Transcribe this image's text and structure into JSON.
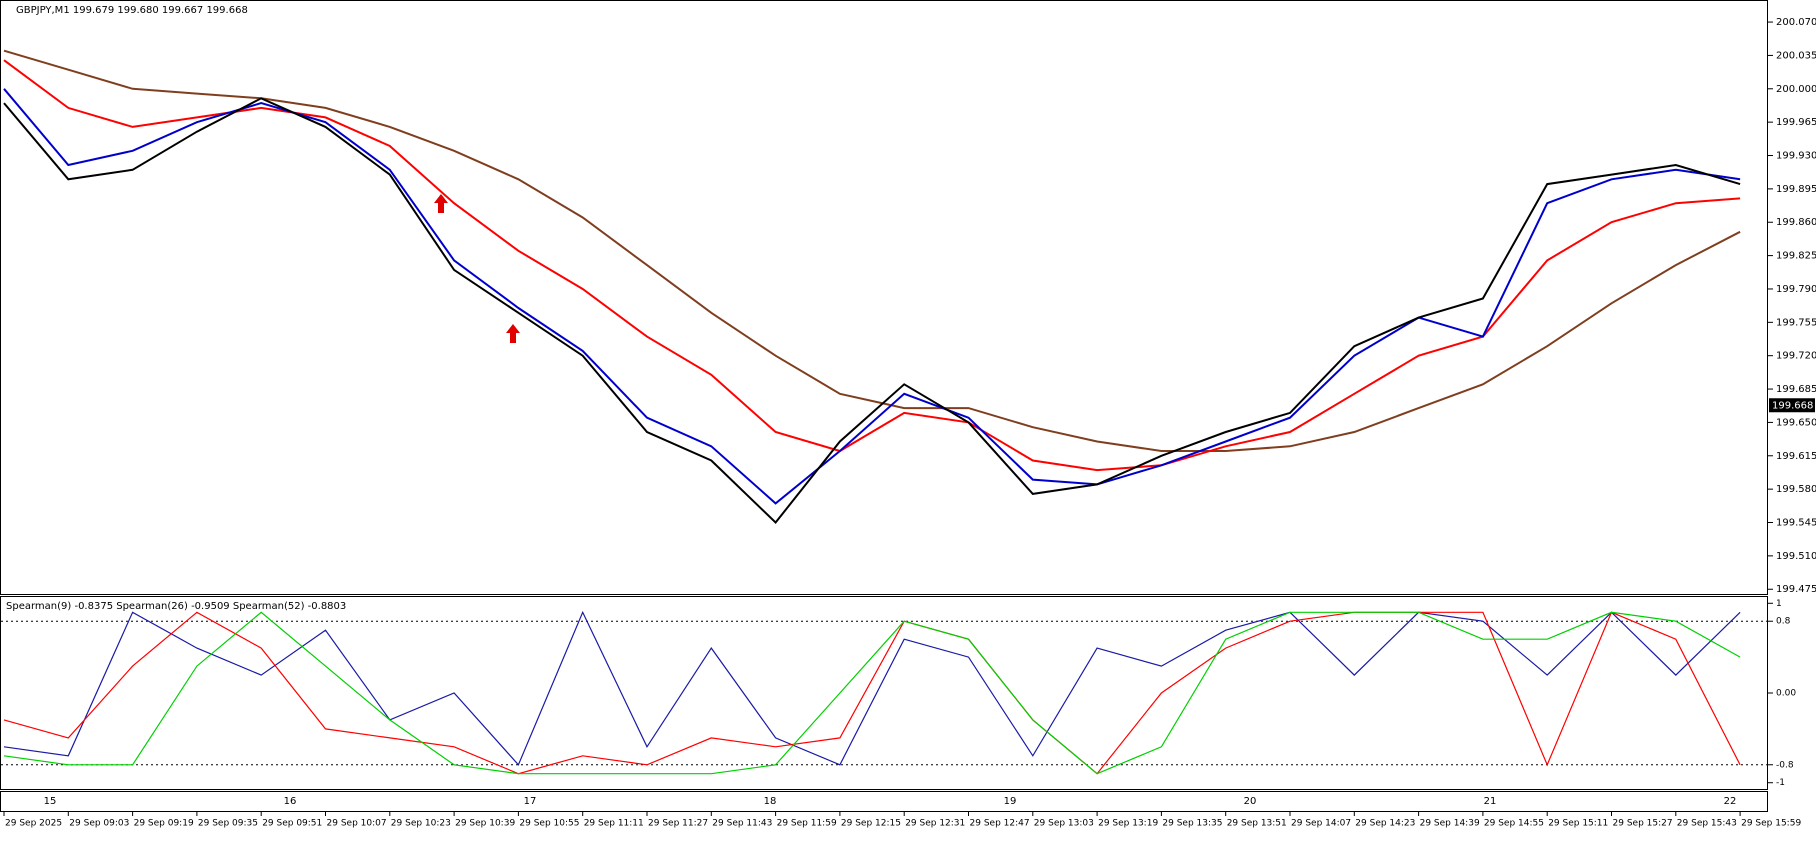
{
  "chart_data": [
    {
      "type": "line",
      "title": "GBPJPY,M1  199.679 199.680 199.667 199.668",
      "categories": [
        "29 Sep 2025",
        "29 Sep 09:03",
        "29 Sep 09:19",
        "29 Sep 09:35",
        "29 Sep 09:51",
        "29 Sep 10:07",
        "29 Sep 10:23",
        "29 Sep 10:39",
        "29 Sep 10:55",
        "29 Sep 11:11",
        "29 Sep 11:27",
        "29 Sep 11:43",
        "29 Sep 11:59",
        "29 Sep 12:15",
        "29 Sep 12:31",
        "29 Sep 12:47",
        "29 Sep 13:03",
        "29 Sep 13:19",
        "29 Sep 13:35",
        "29 Sep 13:51",
        "29 Sep 14:07",
        "29 Sep 14:23",
        "29 Sep 14:39",
        "29 Sep 14:55",
        "29 Sep 15:11",
        "29 Sep 15:27",
        "29 Sep 15:43",
        "29 Sep 15:59"
      ],
      "day_labels": [
        "15",
        "16",
        "17",
        "18",
        "19",
        "20",
        "21",
        "22"
      ],
      "series": [
        {
          "color": "#7f3f1f",
          "values": [
            200.04,
            200.02,
            200.0,
            199.995,
            199.99,
            199.98,
            199.96,
            199.935,
            199.905,
            199.865,
            199.815,
            199.765,
            199.72,
            199.68,
            199.665,
            199.665,
            199.645,
            199.63,
            199.62,
            199.62,
            199.625,
            199.64,
            199.665,
            199.69,
            199.73,
            199.775,
            199.815,
            199.85
          ]
        },
        {
          "color": "#ff0000",
          "values": [
            200.03,
            199.98,
            199.96,
            199.97,
            199.98,
            199.97,
            199.94,
            199.88,
            199.83,
            199.79,
            199.74,
            199.7,
            199.64,
            199.62,
            199.66,
            199.65,
            199.61,
            199.6,
            199.605,
            199.625,
            199.64,
            199.68,
            199.72,
            199.74,
            199.82,
            199.86,
            199.88,
            199.885
          ]
        },
        {
          "color": "#0000cc",
          "values": [
            200.0,
            199.92,
            199.935,
            199.965,
            199.985,
            199.965,
            199.915,
            199.82,
            199.77,
            199.725,
            199.655,
            199.625,
            199.565,
            199.62,
            199.68,
            199.655,
            199.59,
            199.585,
            199.605,
            199.63,
            199.655,
            199.72,
            199.76,
            199.74,
            199.88,
            199.905,
            199.915,
            199.905
          ]
        },
        {
          "color": "#000000",
          "values": [
            199.985,
            199.905,
            199.915,
            199.955,
            199.99,
            199.96,
            199.91,
            199.81,
            199.765,
            199.72,
            199.64,
            199.61,
            199.545,
            199.63,
            199.69,
            199.65,
            199.575,
            199.585,
            199.615,
            199.64,
            199.66,
            199.73,
            199.76,
            199.78,
            199.9,
            199.91,
            199.92,
            199.9
          ]
        }
      ],
      "last_price": {
        "value": 199.668,
        "label": "199.668"
      },
      "ylim": [
        199.47,
        200.09
      ],
      "yticks": [
        {
          "value": 200.07,
          "label": "200.070"
        },
        {
          "value": 200.035,
          "label": "200.035"
        },
        {
          "value": 200.0,
          "label": "200.000"
        },
        {
          "value": 199.965,
          "label": "199.965"
        },
        {
          "value": 199.93,
          "label": "199.930"
        },
        {
          "value": 199.895,
          "label": "199.895"
        },
        {
          "value": 199.86,
          "label": "199.860"
        },
        {
          "value": 199.825,
          "label": "199.825"
        },
        {
          "value": 199.79,
          "label": "199.790"
        },
        {
          "value": 199.755,
          "label": "199.755"
        },
        {
          "value": 199.72,
          "label": "199.720"
        },
        {
          "value": 199.685,
          "label": "199.685"
        },
        {
          "value": 199.65,
          "label": "199.650"
        },
        {
          "value": 199.615,
          "label": "199.615"
        },
        {
          "value": 199.58,
          "label": "199.580"
        },
        {
          "value": 199.545,
          "label": "199.545"
        },
        {
          "value": 199.51,
          "label": "199.510"
        },
        {
          "value": 199.475,
          "label": "199.475"
        }
      ],
      "grid": false
    },
    {
      "type": "line",
      "title": "Spearman(9) -0.8375  Spearman(26) -0.9509  Spearman(52) -0.8803",
      "series": [
        {
          "color": "#1a1aa6",
          "values": [
            -0.6,
            -0.7,
            0.9,
            0.5,
            0.2,
            0.7,
            -0.3,
            0.0,
            -0.8,
            0.9,
            -0.6,
            0.5,
            -0.5,
            -0.8,
            0.6,
            0.4,
            -0.7,
            0.5,
            0.3,
            0.7,
            0.9,
            0.2,
            0.9,
            0.8,
            0.2,
            0.9,
            0.2,
            0.9
          ]
        },
        {
          "color": "#ff0000",
          "values": [
            -0.3,
            -0.5,
            0.3,
            0.9,
            0.5,
            -0.4,
            -0.5,
            -0.6,
            -0.9,
            -0.7,
            -0.8,
            -0.5,
            -0.6,
            -0.5,
            0.8,
            0.6,
            -0.3,
            -0.9,
            0.0,
            0.5,
            0.8,
            0.9,
            0.9,
            0.9,
            -0.8,
            0.9,
            0.6,
            -0.8
          ]
        },
        {
          "color": "#00d000",
          "values": [
            -0.7,
            -0.8,
            -0.8,
            0.3,
            0.9,
            0.3,
            -0.3,
            -0.8,
            -0.9,
            -0.9,
            -0.9,
            -0.9,
            -0.8,
            0.0,
            0.8,
            0.6,
            -0.3,
            -0.9,
            -0.6,
            0.6,
            0.9,
            0.9,
            0.9,
            0.6,
            0.6,
            0.9,
            0.8,
            0.4
          ]
        }
      ],
      "ylim": [
        -1.07,
        1.07
      ],
      "yticks": [
        1,
        0.8,
        {
          "value": 0,
          "label": "0.00"
        },
        -0.8,
        -1
      ],
      "levels": [
        0.8,
        -0.8
      ]
    }
  ]
}
